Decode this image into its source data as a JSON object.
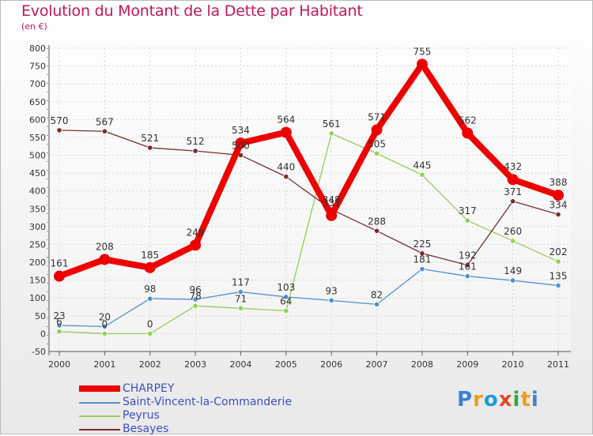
{
  "title": "Evolution du Montant de la Dette par Habitant",
  "subtitle": "(en €)",
  "logo": {
    "text": "Proxiti",
    "colors": [
      "#3f7fd6",
      "#e9a01a",
      "#1e9ad6",
      "#e5472d",
      "#35a83b",
      "#e9a01a",
      "#3f7fd6"
    ]
  },
  "chart_data": {
    "type": "line",
    "x": [
      "2000",
      "2001",
      "2002",
      "2003",
      "2004",
      "2005",
      "2006",
      "2007",
      "2008",
      "2009",
      "2010",
      "2011"
    ],
    "ylim": [
      -50,
      800
    ],
    "yticks": [
      -50,
      0,
      50,
      100,
      150,
      200,
      250,
      300,
      350,
      400,
      450,
      500,
      550,
      600,
      650,
      700,
      750,
      800
    ],
    "grid": true,
    "legend": "bottom-left",
    "series": [
      {
        "name": "Saint-Vincent-la-Commanderie",
        "color": "#4f8fd0",
        "width": 1.3,
        "values": [
          23,
          20,
          98,
          96,
          117,
          103,
          93,
          82,
          181,
          161,
          149,
          135
        ],
        "labels": [
          "23",
          "20",
          "98",
          "96",
          "117",
          "103",
          "93",
          "82",
          "181",
          "161",
          "149",
          "135"
        ]
      },
      {
        "name": "Peyrus",
        "color": "#8fd058",
        "width": 1.3,
        "values": [
          6,
          0,
          0,
          78,
          71,
          64,
          561,
          505,
          445,
          317,
          260,
          202
        ],
        "labels": [
          "6",
          "0",
          "0",
          "78",
          "71",
          "64",
          "561",
          "505",
          "445",
          "317",
          "260",
          "202"
        ]
      },
      {
        "name": "Besayes",
        "color": "#7a2d2d",
        "width": 1.3,
        "values": [
          570,
          567,
          521,
          512,
          500,
          440,
          348,
          288,
          225,
          192,
          371,
          334
        ],
        "labels": [
          "570",
          "567",
          "521",
          "512",
          "500",
          "440",
          "348",
          "288",
          "225",
          "192",
          "371",
          "334"
        ]
      },
      {
        "name": "CHARPEY",
        "color": "#ee0000",
        "width": 8,
        "values": [
          161,
          208,
          185,
          248,
          534,
          564,
          331,
          571,
          755,
          562,
          432,
          388
        ],
        "labels": [
          "161",
          "208",
          "185",
          "248",
          "534",
          "564",
          "331",
          "571",
          "755",
          "562",
          "432",
          "388"
        ]
      }
    ]
  }
}
